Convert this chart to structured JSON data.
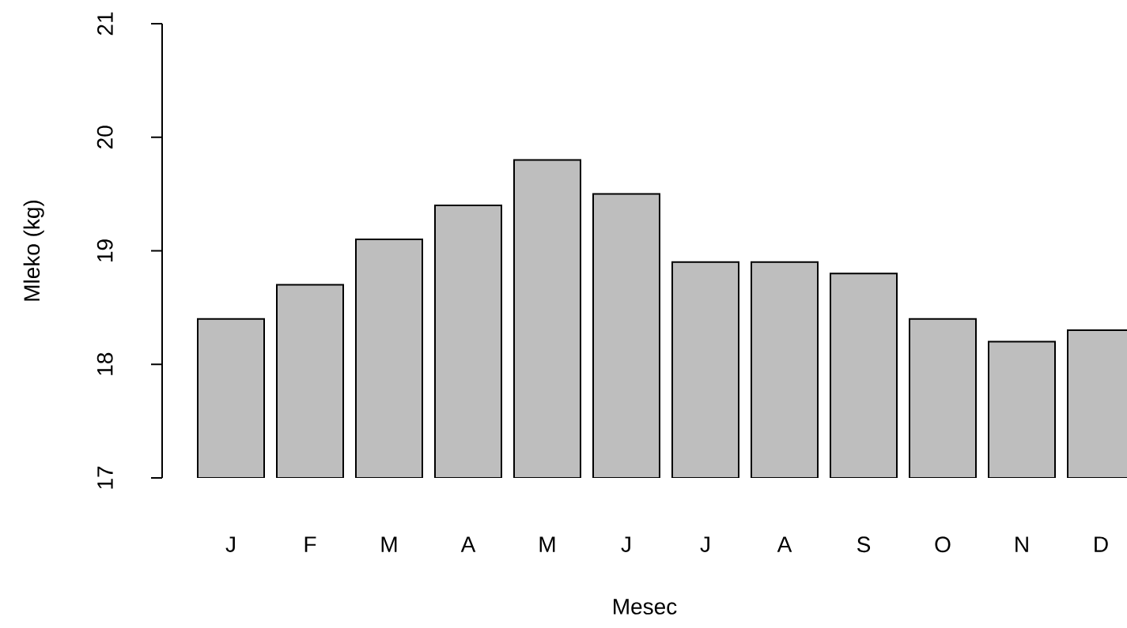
{
  "chart_data": {
    "type": "bar",
    "xlabel": "Mesec",
    "ylabel": "Mleko (kg)",
    "categories": [
      "J",
      "F",
      "M",
      "A",
      "M",
      "J",
      "J",
      "A",
      "S",
      "O",
      "N",
      "D"
    ],
    "values": [
      18.4,
      18.7,
      19.1,
      19.4,
      19.8,
      19.5,
      18.9,
      18.9,
      18.8,
      18.4,
      18.2,
      18.3
    ],
    "color": "#bebebe",
    "ylim": [
      17,
      21
    ],
    "yticks": [
      17,
      18,
      19,
      20,
      21
    ]
  }
}
